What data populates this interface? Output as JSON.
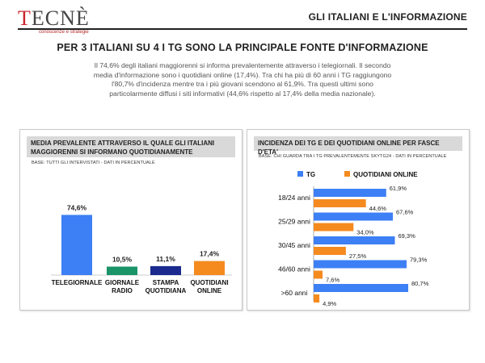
{
  "header": {
    "logo_text_accent": "T",
    "logo_text_rest": "ECNÈ",
    "logo_subtitle": "conoscenze e strategie",
    "section_title": "GLI ITALIANI E L'INFORMAZIONE"
  },
  "title": "PER 3 ITALIANI SU 4 I TG SONO LA PRINCIPALE FONTE D'INFORMAZIONE",
  "intro": "Il 74,6% degli italiani maggiorenni si informa prevalentemente attraverso i telegiornali. Il secondo media d'informazione sono i quotidiani online (17,4%). Tra chi ha più di 60 anni i TG raggiungono l'80,7% d'incidenza mentre tra i più giovani scendono al 61,9%. Tra questi ultimi sono particolarmente diffusi i siti informativi (44,6% rispetto al 17,4% della media nazionale).",
  "chart_data": [
    {
      "type": "bar",
      "title": "MEDIA PREVALENTE ATTRAVERSO IL QUALE GLI ITALIANI MAGGIORENNI SI INFORMANO QUOTIDIANAMENTE",
      "subtitle": "BASE: TUTTI GLI INTERVISTATI - DATI IN PERCENTUALE",
      "categories": [
        "TELEGIORNALE",
        "GIORNALE RADIO",
        "STAMPA QUOTIDIANA",
        "QUOTIDIANI ONLINE"
      ],
      "category_lines": [
        [
          "TELEGIORNALE"
        ],
        [
          "GIORNALE",
          "RADIO"
        ],
        [
          "STAMPA",
          "QUOTIDIANA"
        ],
        [
          "QUOTIDIANI",
          "ONLINE"
        ]
      ],
      "values": [
        74.6,
        10.5,
        11.1,
        17.4
      ],
      "labels": [
        "74,6%",
        "10,5%",
        "11,1%",
        "17,4%"
      ],
      "colors": [
        "#3d7ff5",
        "#1a9468",
        "#1a2a8e",
        "#f58a1f"
      ],
      "ylim": [
        0,
        100
      ]
    },
    {
      "type": "bar",
      "orientation": "horizontal",
      "title": "INCIDENZA DEI TG E DEI QUOTIDIANI ONLINE PER FASCE D'ETA'",
      "subtitle": "BASE: CHI GUARDA TRA I TG PREVALENTEMENTE SKYTG24 - DATI IN PERCENTUALE",
      "legend": "top",
      "categories": [
        "18/24 anni",
        "25/29 anni",
        "30/45 anni",
        "46/60 anni",
        ">60 anni"
      ],
      "series": [
        {
          "name": "TG",
          "color": "#3d7ff5",
          "values": [
            61.9,
            67.6,
            69.3,
            79.3,
            80.7
          ],
          "labels": [
            "61,9%",
            "67,6%",
            "69,3%",
            "79,3%",
            "80,7%"
          ]
        },
        {
          "name": "QUOTIDIANI ONLINE",
          "color": "#f58a1f",
          "values": [
            44.6,
            34.0,
            27.5,
            7.6,
            4.9
          ],
          "labels": [
            "44,6%",
            "34,0%",
            "27,5%",
            "7,6%",
            "4,9%"
          ]
        }
      ],
      "xlim": [
        0,
        100
      ]
    }
  ]
}
